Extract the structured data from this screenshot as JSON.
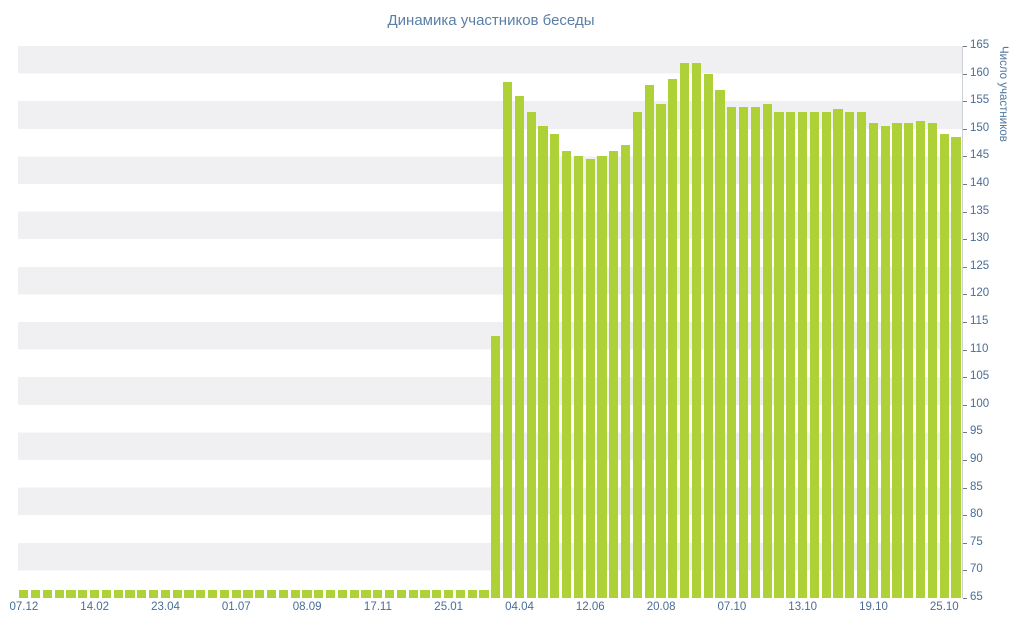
{
  "title": "Динамика участников беседы",
  "chart_data": {
    "type": "bar",
    "title": "Динамика участников беседы",
    "xlabel": "",
    "ylabel": "Число участников",
    "ylim": [
      65,
      165
    ],
    "y_step": 5,
    "y_ticks": [
      165,
      160,
      155,
      150,
      145,
      140,
      135,
      130,
      125,
      120,
      115,
      110,
      105,
      100,
      95,
      90,
      85,
      80,
      75,
      70,
      65
    ],
    "x_tick_labels": [
      "07.12",
      "14.02",
      "23.04",
      "01.07",
      "08.09",
      "17.11",
      "25.01",
      "04.04",
      "12.06",
      "20.08",
      "07.10",
      "13.10",
      "19.10",
      "25.10"
    ],
    "label_every": 6,
    "values": [
      66.5,
      66.5,
      66.5,
      66.5,
      66.5,
      66.5,
      66.5,
      66.5,
      66.5,
      66.5,
      66.5,
      66.5,
      66.5,
      66.5,
      66.5,
      66.5,
      66.5,
      66.5,
      66.5,
      66.5,
      66.5,
      66.5,
      66.5,
      66.5,
      66.5,
      66.5,
      66.5,
      66.5,
      66.5,
      66.5,
      66.5,
      66.5,
      66.5,
      66.5,
      66.5,
      66.5,
      66.5,
      66.5,
      66.5,
      66.5,
      112.5,
      158.5,
      156,
      153,
      150.5,
      149,
      146,
      145,
      144.5,
      145,
      146,
      147,
      153,
      158,
      154.5,
      159,
      162,
      162,
      160,
      157,
      154,
      154,
      154,
      154.5,
      153,
      153,
      153,
      153,
      153,
      153.5,
      153,
      153,
      151,
      150.5,
      151,
      151,
      151.5,
      151,
      149,
      148.5
    ],
    "bar_color": "#aed137",
    "stripe_colors": [
      "#f0f0f2",
      "#ffffff"
    ],
    "text_color": "#4a6d94",
    "grid": "horizontal-bands",
    "legend": "none"
  }
}
